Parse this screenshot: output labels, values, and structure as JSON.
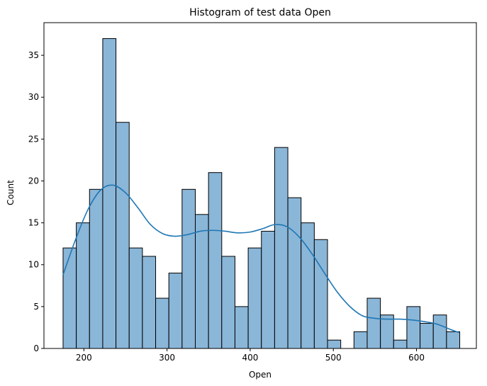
{
  "chart_data": {
    "type": "bar",
    "subtype": "histogram",
    "title": "Histogram of test data Open",
    "xlabel": "Open",
    "ylabel": "Count",
    "xlim": [
      152,
      672
    ],
    "ylim": [
      0,
      38.9
    ],
    "x_ticks": [
      200,
      300,
      400,
      500,
      600
    ],
    "y_ticks": [
      0,
      5,
      10,
      15,
      20,
      25,
      30,
      35
    ],
    "grid": false,
    "legend": "none",
    "bins": {
      "start": 175,
      "width": 15.9,
      "counts": [
        12,
        15,
        19,
        37,
        27,
        12,
        11,
        6,
        9,
        19,
        16,
        21,
        11,
        5,
        12,
        14,
        24,
        18,
        15,
        13,
        1,
        0,
        2,
        6,
        4,
        1,
        5,
        3,
        4,
        2
      ]
    },
    "kde": {
      "x": [
        175,
        190,
        205,
        220,
        235,
        250,
        265,
        280,
        295,
        310,
        325,
        340,
        355,
        370,
        385,
        400,
        415,
        430,
        445,
        460,
        475,
        490,
        505,
        520,
        535,
        550,
        565,
        580,
        595,
        610,
        625,
        640,
        651
      ],
      "y": [
        8.8,
        13.0,
        16.6,
        18.9,
        19.5,
        18.6,
        16.8,
        14.8,
        13.7,
        13.4,
        13.6,
        14.0,
        14.1,
        14.0,
        13.8,
        13.9,
        14.3,
        14.8,
        14.5,
        13.2,
        11.2,
        8.9,
        6.7,
        5.0,
        3.9,
        3.6,
        3.5,
        3.5,
        3.4,
        3.2,
        2.9,
        2.3,
        1.9
      ]
    },
    "colors": {
      "bar_fill": "#8ab6d8",
      "bar_edge": "#000000",
      "kde_line": "#1f77b4"
    }
  }
}
